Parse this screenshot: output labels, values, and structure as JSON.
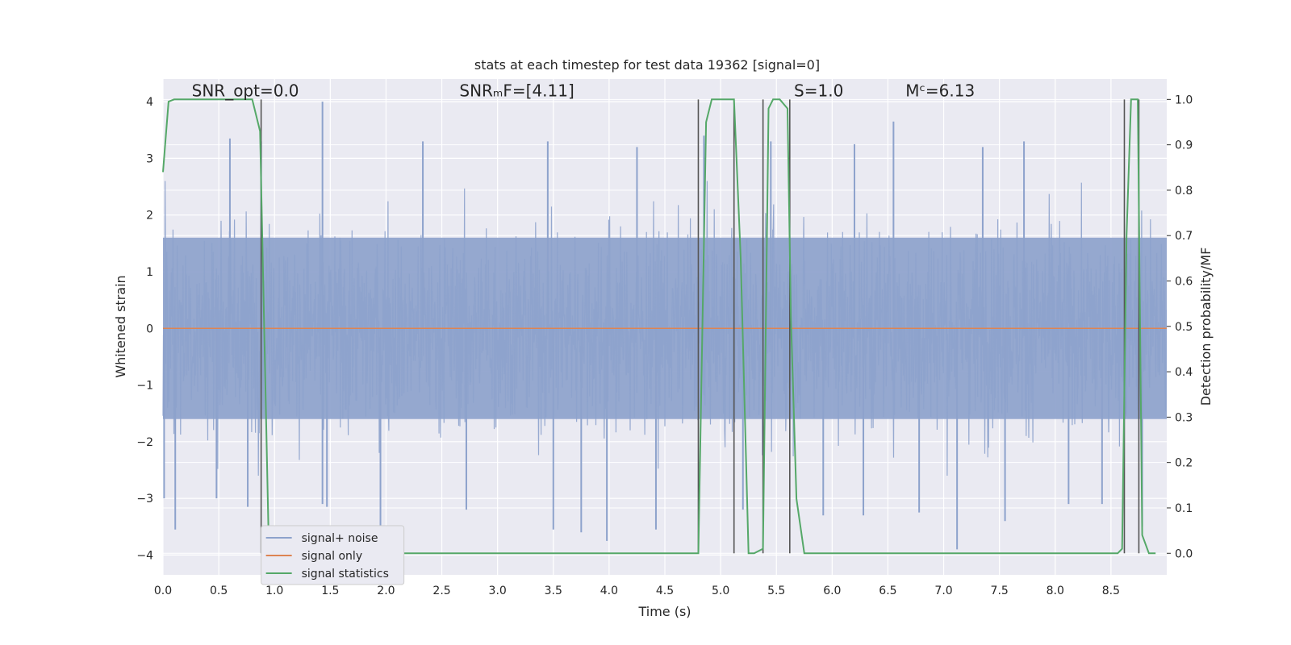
{
  "chart_data": {
    "type": "line",
    "title": "stats at each timestep for test data 19362 [signal=0]",
    "xlabel": "Time (s)",
    "ylabel_left": "Whitened strain",
    "ylabel_right": "Detection probability/MF",
    "xlim": [
      0.0,
      9.0
    ],
    "ylim_left": [
      -4.35,
      4.4
    ],
    "ylim_right": [
      -0.0475,
      1.045
    ],
    "x_ticks": [
      "0.0",
      "0.5",
      "1.0",
      "1.5",
      "2.0",
      "2.5",
      "3.0",
      "3.5",
      "4.0",
      "4.5",
      "5.0",
      "5.5",
      "6.0",
      "6.5",
      "7.0",
      "7.5",
      "8.0",
      "8.5"
    ],
    "y_left_ticks": [
      "4",
      "3",
      "2",
      "1",
      "0",
      "−1",
      "−2",
      "−3",
      "−4"
    ],
    "y_right_ticks": [
      "1.0",
      "0.9",
      "0.8",
      "0.7",
      "0.6",
      "0.5",
      "0.4",
      "0.3",
      "0.2",
      "0.1",
      "0.0"
    ],
    "annotations": [
      {
        "key": "snr_opt",
        "text": "SNR_opt=0.0",
        "x": 0.2,
        "y": 4.15
      },
      {
        "key": "snr_mf",
        "text": "SNRₘF=[4.11]",
        "x": 2.6,
        "y": 4.15
      },
      {
        "key": "s",
        "text": "S=1.0",
        "x": 5.6,
        "y": 4.15
      },
      {
        "key": "mc",
        "text": "Mᶜ=6.13",
        "x": 6.6,
        "y": 4.15
      }
    ],
    "legend": {
      "placement": "lower-left",
      "entries": [
        "signal+ noise",
        "signal only",
        "signal statistics"
      ]
    },
    "grid": true,
    "series": [
      {
        "name": "signal+ noise",
        "axis": "left",
        "color": "#8da2cc",
        "style": "dense noise, typical amplitude about 1.6, peaks to about 4",
        "envelope": 1.6,
        "spikes": [
          {
            "x": 0.88,
            "y": 3.3
          },
          {
            "x": 1.43,
            "y": 4.0
          },
          {
            "x": 1.43,
            "y": -3.1
          },
          {
            "x": 0.6,
            "y": 3.35
          },
          {
            "x": 0.11,
            "y": -3.55
          },
          {
            "x": 0.01,
            "y": -3.0
          },
          {
            "x": 0.48,
            "y": -3.0
          },
          {
            "x": 0.76,
            "y": -3.15
          },
          {
            "x": 1.47,
            "y": -3.15
          },
          {
            "x": 1.95,
            "y": -3.6
          },
          {
            "x": 2.33,
            "y": 3.3
          },
          {
            "x": 3.5,
            "y": -3.55
          },
          {
            "x": 3.75,
            "y": -3.6
          },
          {
            "x": 3.98,
            "y": -3.75
          },
          {
            "x": 4.42,
            "y": -3.55
          },
          {
            "x": 4.85,
            "y": 3.4
          },
          {
            "x": 5.45,
            "y": 3.3
          },
          {
            "x": 5.92,
            "y": -3.3
          },
          {
            "x": 6.2,
            "y": 3.25
          },
          {
            "x": 6.28,
            "y": -3.3
          },
          {
            "x": 6.55,
            "y": 3.65
          },
          {
            "x": 6.78,
            "y": -3.25
          },
          {
            "x": 7.12,
            "y": -3.9
          },
          {
            "x": 7.35,
            "y": 3.2
          },
          {
            "x": 7.55,
            "y": -3.4
          },
          {
            "x": 7.72,
            "y": 3.3
          },
          {
            "x": 8.12,
            "y": -3.1
          },
          {
            "x": 8.42,
            "y": -3.1
          },
          {
            "x": 8.78,
            "y": -3.5
          },
          {
            "x": 3.45,
            "y": 3.3
          },
          {
            "x": 4.25,
            "y": 3.2
          },
          {
            "x": 5.2,
            "y": -3.2
          },
          {
            "x": 2.72,
            "y": -3.2
          }
        ]
      },
      {
        "name": "signal only",
        "axis": "left",
        "color": "#dd8452",
        "points": [
          [
            0.0,
            0.0
          ],
          [
            9.0,
            0.0
          ]
        ]
      },
      {
        "name": "signal statistics",
        "axis": "right",
        "color": "#55a868",
        "points": [
          [
            0.0,
            0.84
          ],
          [
            0.05,
            0.995
          ],
          [
            0.1,
            1.0
          ],
          [
            0.2,
            1.0
          ],
          [
            0.3,
            1.0
          ],
          [
            0.4,
            1.0
          ],
          [
            0.5,
            1.0
          ],
          [
            0.6,
            1.0
          ],
          [
            0.7,
            1.0
          ],
          [
            0.8,
            1.0
          ],
          [
            0.87,
            0.93
          ],
          [
            0.95,
            0.0
          ],
          [
            1.0,
            0.0
          ],
          [
            1.5,
            0.0
          ],
          [
            2.0,
            0.0
          ],
          [
            2.5,
            0.0
          ],
          [
            3.0,
            0.0
          ],
          [
            3.5,
            0.0
          ],
          [
            4.0,
            0.0
          ],
          [
            4.5,
            0.0
          ],
          [
            4.8,
            0.0
          ],
          [
            4.87,
            0.95
          ],
          [
            4.92,
            1.0
          ],
          [
            5.0,
            1.0
          ],
          [
            5.12,
            1.0
          ],
          [
            5.18,
            0.65
          ],
          [
            5.25,
            0.0
          ],
          [
            5.3,
            0.0
          ],
          [
            5.38,
            0.01
          ],
          [
            5.43,
            0.98
          ],
          [
            5.47,
            1.0
          ],
          [
            5.53,
            1.0
          ],
          [
            5.6,
            0.98
          ],
          [
            5.63,
            0.52
          ],
          [
            5.68,
            0.12
          ],
          [
            5.75,
            0.0
          ],
          [
            6.0,
            0.0
          ],
          [
            6.5,
            0.0
          ],
          [
            7.0,
            0.0
          ],
          [
            7.5,
            0.0
          ],
          [
            8.0,
            0.0
          ],
          [
            8.5,
            0.0
          ],
          [
            8.56,
            0.0
          ],
          [
            8.6,
            0.01
          ],
          [
            8.64,
            0.7
          ],
          [
            8.68,
            1.0
          ],
          [
            8.74,
            1.0
          ],
          [
            8.78,
            0.04
          ],
          [
            8.84,
            0.0
          ],
          [
            8.9,
            0.0
          ]
        ]
      }
    ],
    "vertical_markers": [
      0.88,
      4.8,
      5.12,
      5.38,
      5.62,
      8.62,
      8.75
    ]
  }
}
